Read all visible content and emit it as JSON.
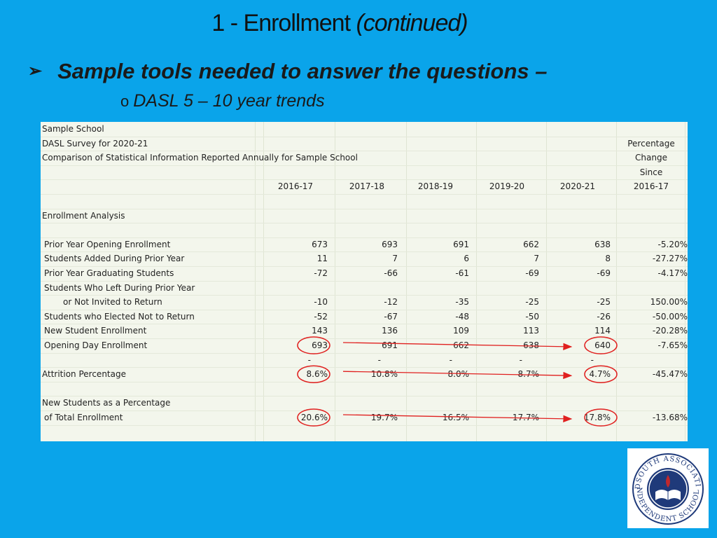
{
  "slide": {
    "title_main": "1 - Enrollment ",
    "title_italic": "(continued)",
    "bullet": "Sample tools needed to answer the questions –",
    "sub_bullet_marker": "o",
    "sub_bullet": "DASL 5 – 10 year trends"
  },
  "sheet": {
    "header_lines": [
      "Sample School",
      "DASL Survey for 2020-21",
      "Comparison of Statistical Information Reported Annually for Sample School"
    ],
    "pct_header": [
      "Percentage",
      "Change",
      "Since"
    ],
    "years": [
      "2016-17",
      "2017-18",
      "2018-19",
      "2019-20",
      "2020-21",
      "2016-17"
    ],
    "section": "Enrollment Analysis",
    "rows": [
      {
        "label": "Prior Year Opening Enrollment",
        "values": [
          "673",
          "693",
          "691",
          "662",
          "638",
          "-5.20%"
        ]
      },
      {
        "label": "Students Added During Prior Year",
        "values": [
          "11",
          "7",
          "6",
          "7",
          "8",
          "-27.27%"
        ]
      },
      {
        "label": "Prior Year Graduating Students",
        "values": [
          "-72",
          "-66",
          "-61",
          "-69",
          "-69",
          "-4.17%"
        ]
      },
      {
        "label": "Students Who Left During Prior Year",
        "values": [
          "",
          "",
          "",
          "",
          "",
          ""
        ]
      },
      {
        "label": "or Not Invited to Return",
        "values": [
          "-10",
          "-12",
          "-35",
          "-25",
          "-25",
          "150.00%"
        ]
      },
      {
        "label": "Students who Elected Not to Return",
        "values": [
          "-52",
          "-67",
          "-48",
          "-50",
          "-26",
          "-50.00%"
        ]
      },
      {
        "label": "New Student Enrollment",
        "values": [
          "143",
          "136",
          "109",
          "113",
          "114",
          "-20.28%"
        ]
      },
      {
        "label": "Opening Day Enrollment",
        "values": [
          "693",
          "691",
          "662",
          "638",
          "640",
          "-7.65%"
        ]
      },
      {
        "label": "",
        "values": [
          "-",
          "-",
          "-",
          "-",
          "-",
          ""
        ]
      }
    ],
    "attrition": {
      "label": "Attrition Percentage",
      "values": [
        "8.6%",
        "10.8%",
        "8.0%",
        "8.7%",
        "4.7%",
        "-45.47%"
      ]
    },
    "newpct_label1": "New Students as a Percentage",
    "newpct": {
      "label": "of Total Enrollment",
      "values": [
        "20.6%",
        "19.7%",
        "16.5%",
        "17.7%",
        "17.8%",
        "-13.68%"
      ]
    }
  },
  "logo": {
    "ring_top": "MIDSOUTH ASSOCIATION",
    "ring_bottom": "INDEPENDENT SCHOOLS",
    "ring_color": "#1f3a7a",
    "accent_color": "#c0282d"
  },
  "annotation_color": "#e0201f"
}
